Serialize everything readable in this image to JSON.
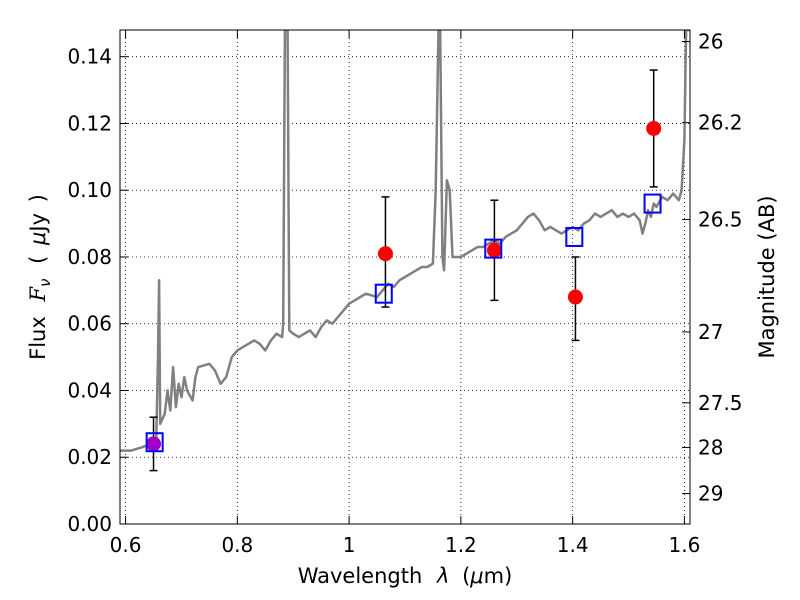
{
  "chart_data": {
    "type": "scatter",
    "xlabel": "Wavelength",
    "xlabel_symbol": "λ",
    "xlabel_unit_open": "(",
    "xlabel_unit_mu": "μ",
    "xlabel_unit_rest": "m)",
    "ylabel": "Flux",
    "ylabel_symbol": "F",
    "ylabel_symbol_sub": "ν",
    "ylabel_unit_open": "(",
    "ylabel_unit_mu": "μ",
    "ylabel_unit_rest": "Jy",
    "ylabel_unit_close": ")",
    "y2label": "Magnitude (AB)",
    "xlim": [
      0.59,
      1.61
    ],
    "ylim": [
      0.0,
      0.148
    ],
    "grid": true,
    "x_ticks": [
      0.6,
      0.8,
      1.0,
      1.2,
      1.4,
      1.6
    ],
    "x_tick_labels": [
      "0.6",
      "0.8",
      "1",
      "1.2",
      "1.4",
      "1.6"
    ],
    "y_ticks": [
      0.0,
      0.02,
      0.04,
      0.06,
      0.08,
      0.1,
      0.12,
      0.14
    ],
    "y_tick_labels": [
      "0.00",
      "0.02",
      "0.04",
      "0.06",
      "0.08",
      "0.10",
      "0.12",
      "0.14"
    ],
    "y2_ticks": [
      {
        "mag": 26,
        "label": "26"
      },
      {
        "mag": 26.2,
        "label": "26.2"
      },
      {
        "mag": 26.5,
        "label": "26.5"
      },
      {
        "mag": 27,
        "label": "27"
      },
      {
        "mag": 27.5,
        "label": "27.5"
      },
      {
        "mag": 28,
        "label": "28"
      },
      {
        "mag": 29,
        "label": "29"
      }
    ],
    "series": [
      {
        "kind": "line",
        "color": "#808080",
        "points": [
          [
            0.59,
            0.022
          ],
          [
            0.61,
            0.022
          ],
          [
            0.63,
            0.023
          ],
          [
            0.645,
            0.024
          ],
          [
            0.655,
            0.026
          ],
          [
            0.658,
            0.05
          ],
          [
            0.66,
            0.073
          ],
          [
            0.662,
            0.03
          ],
          [
            0.67,
            0.033
          ],
          [
            0.675,
            0.04
          ],
          [
            0.68,
            0.034
          ],
          [
            0.685,
            0.047
          ],
          [
            0.69,
            0.035
          ],
          [
            0.695,
            0.042
          ],
          [
            0.7,
            0.038
          ],
          [
            0.705,
            0.044
          ],
          [
            0.71,
            0.04
          ],
          [
            0.72,
            0.037
          ],
          [
            0.725,
            0.044
          ],
          [
            0.73,
            0.047
          ],
          [
            0.75,
            0.048
          ],
          [
            0.76,
            0.046
          ],
          [
            0.77,
            0.042
          ],
          [
            0.78,
            0.044
          ],
          [
            0.79,
            0.05
          ],
          [
            0.8,
            0.052
          ],
          [
            0.81,
            0.053
          ],
          [
            0.82,
            0.054
          ],
          [
            0.83,
            0.055
          ],
          [
            0.84,
            0.054
          ],
          [
            0.85,
            0.052
          ],
          [
            0.86,
            0.055
          ],
          [
            0.87,
            0.057
          ],
          [
            0.88,
            0.056
          ],
          [
            0.882,
            0.06
          ],
          [
            0.885,
            0.148
          ],
          [
            0.89,
            0.148
          ],
          [
            0.893,
            0.058
          ],
          [
            0.9,
            0.057
          ],
          [
            0.91,
            0.056
          ],
          [
            0.92,
            0.057
          ],
          [
            0.93,
            0.058
          ],
          [
            0.94,
            0.056
          ],
          [
            0.95,
            0.059
          ],
          [
            0.96,
            0.061
          ],
          [
            0.97,
            0.06
          ],
          [
            0.98,
            0.062
          ],
          [
            0.99,
            0.064
          ],
          [
            1.0,
            0.066
          ],
          [
            1.01,
            0.067
          ],
          [
            1.02,
            0.068
          ],
          [
            1.03,
            0.069
          ],
          [
            1.05,
            0.068
          ],
          [
            1.06,
            0.07
          ],
          [
            1.07,
            0.072
          ],
          [
            1.08,
            0.071
          ],
          [
            1.09,
            0.073
          ],
          [
            1.1,
            0.074
          ],
          [
            1.11,
            0.075
          ],
          [
            1.12,
            0.076
          ],
          [
            1.13,
            0.077
          ],
          [
            1.14,
            0.077
          ],
          [
            1.15,
            0.078
          ],
          [
            1.155,
            0.1
          ],
          [
            1.16,
            0.148
          ],
          [
            1.163,
            0.148
          ],
          [
            1.167,
            0.08
          ],
          [
            1.17,
            0.076
          ],
          [
            1.175,
            0.103
          ],
          [
            1.18,
            0.1
          ],
          [
            1.185,
            0.08
          ],
          [
            1.19,
            0.08
          ],
          [
            1.2,
            0.08
          ],
          [
            1.21,
            0.081
          ],
          [
            1.22,
            0.082
          ],
          [
            1.23,
            0.083
          ],
          [
            1.24,
            0.083
          ],
          [
            1.25,
            0.084
          ],
          [
            1.26,
            0.085
          ],
          [
            1.27,
            0.084
          ],
          [
            1.28,
            0.086
          ],
          [
            1.29,
            0.087
          ],
          [
            1.3,
            0.088
          ],
          [
            1.31,
            0.09
          ],
          [
            1.32,
            0.092
          ],
          [
            1.33,
            0.093
          ],
          [
            1.34,
            0.091
          ],
          [
            1.35,
            0.088
          ],
          [
            1.36,
            0.089
          ],
          [
            1.37,
            0.088
          ],
          [
            1.38,
            0.087
          ],
          [
            1.39,
            0.088
          ],
          [
            1.4,
            0.089
          ],
          [
            1.41,
            0.088
          ],
          [
            1.42,
            0.09
          ],
          [
            1.43,
            0.091
          ],
          [
            1.44,
            0.093
          ],
          [
            1.45,
            0.092
          ],
          [
            1.46,
            0.093
          ],
          [
            1.47,
            0.094
          ],
          [
            1.48,
            0.092
          ],
          [
            1.49,
            0.093
          ],
          [
            1.5,
            0.092
          ],
          [
            1.51,
            0.093
          ],
          [
            1.52,
            0.091
          ],
          [
            1.525,
            0.087
          ],
          [
            1.53,
            0.09
          ],
          [
            1.535,
            0.094
          ],
          [
            1.54,
            0.092
          ],
          [
            1.545,
            0.096
          ],
          [
            1.55,
            0.095
          ],
          [
            1.56,
            0.098
          ],
          [
            1.57,
            0.097
          ],
          [
            1.58,
            0.099
          ],
          [
            1.59,
            0.097
          ],
          [
            1.595,
            0.1
          ],
          [
            1.6,
            0.115
          ],
          [
            1.603,
            0.148
          ],
          [
            1.61,
            0.148
          ]
        ]
      },
      {
        "kind": "points_with_errors",
        "color": "#ff0000",
        "points": [
          {
            "x": 1.065,
            "y": 0.081,
            "ylo": 0.065,
            "yhi": 0.098
          },
          {
            "x": 1.26,
            "y": 0.082,
            "ylo": 0.067,
            "yhi": 0.097
          },
          {
            "x": 1.405,
            "y": 0.068,
            "ylo": 0.055,
            "yhi": 0.08
          },
          {
            "x": 1.545,
            "y": 0.1185,
            "ylo": 0.101,
            "yhi": 0.136
          }
        ]
      },
      {
        "kind": "points_with_errors",
        "color": "#a000c8",
        "points": [
          {
            "x": 0.65,
            "y": 0.024,
            "ylo": 0.016,
            "yhi": 0.032
          }
        ]
      },
      {
        "kind": "open_squares",
        "color": "#0000ff",
        "points": [
          {
            "x": 0.652,
            "y": 0.0245
          },
          {
            "x": 1.062,
            "y": 0.069
          },
          {
            "x": 1.258,
            "y": 0.0825
          },
          {
            "x": 1.403,
            "y": 0.086
          },
          {
            "x": 1.543,
            "y": 0.096
          }
        ]
      }
    ]
  }
}
